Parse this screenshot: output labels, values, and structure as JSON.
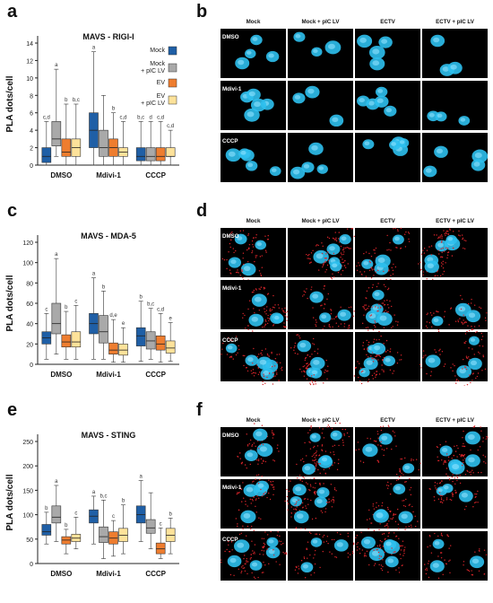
{
  "panel_labels": [
    "a",
    "b",
    "c",
    "d",
    "e",
    "f"
  ],
  "legend": [
    {
      "label": "Mock",
      "color": "#1f5fa6"
    },
    {
      "label": "Mock\n+ pIC LV",
      "color": "#a9a9a9"
    },
    {
      "label": "EV",
      "color": "#ee7d2f"
    },
    {
      "label": "EV\n+ pIC LV",
      "color": "#fde29a"
    }
  ],
  "chart_data": [
    {
      "type": "box",
      "title": "MAVS - RIGI-I",
      "ylabel": "PLA dots/cell",
      "categories": [
        "DMSO",
        "Mdivi-1",
        "CCCP"
      ],
      "yticks": [
        0,
        2,
        4,
        6,
        8,
        10,
        12,
        14
      ],
      "ylim": [
        0,
        14
      ],
      "series": [
        {
          "name": "Mock",
          "boxes": [
            {
              "min": 0,
              "q1": 0.3,
              "med": 1,
              "q3": 2,
              "max": 5
            },
            {
              "min": 0,
              "q1": 2,
              "med": 4,
              "q3": 6,
              "max": 13
            },
            {
              "min": 0,
              "q1": 0.5,
              "med": 1,
              "q3": 2,
              "max": 5
            }
          ]
        },
        {
          "name": "Mock + pIC LV",
          "boxes": [
            {
              "min": 1,
              "q1": 2.2,
              "med": 3,
              "q3": 5,
              "max": 11
            },
            {
              "min": 0,
              "q1": 1,
              "med": 2,
              "q3": 4,
              "max": 8
            },
            {
              "min": 0,
              "q1": 0.5,
              "med": 1,
              "q3": 2,
              "max": 5
            }
          ]
        },
        {
          "name": "EV",
          "boxes": [
            {
              "min": 0,
              "q1": 1,
              "med": 1.5,
              "q3": 3,
              "max": 7
            },
            {
              "min": 0,
              "q1": 1,
              "med": 2,
              "q3": 3,
              "max": 6
            },
            {
              "min": 0,
              "q1": 0.5,
              "med": 1,
              "q3": 2,
              "max": 5
            }
          ]
        },
        {
          "name": "EV + pIC LV",
          "boxes": [
            {
              "min": 0,
              "q1": 1,
              "med": 2,
              "q3": 3,
              "max": 7
            },
            {
              "min": 0,
              "q1": 1,
              "med": 1.5,
              "q3": 2,
              "max": 5
            },
            {
              "min": 0,
              "q1": 1,
              "med": 1,
              "q3": 2,
              "max": 4
            }
          ]
        }
      ],
      "annotations": [
        [
          "c,d",
          "a",
          "b",
          "b,c"
        ],
        [
          "a",
          "",
          "b",
          "c,d"
        ],
        [
          "b,c",
          "d",
          "c,d",
          "c,d"
        ]
      ]
    },
    {
      "type": "box",
      "title": "MAVS - MDA-5",
      "ylabel": "PLA dots/cell",
      "categories": [
        "DMSO",
        "Mdivi-1",
        "CCCP"
      ],
      "yticks": [
        0,
        20,
        40,
        60,
        80,
        100,
        120
      ],
      "ylim": [
        0,
        120
      ],
      "series": [
        {
          "name": "Mock",
          "boxes": [
            {
              "min": 5,
              "q1": 20,
              "med": 26,
              "q3": 32,
              "max": 50
            },
            {
              "min": 5,
              "q1": 30,
              "med": 40,
              "q3": 50,
              "max": 85
            },
            {
              "min": 3,
              "q1": 18,
              "med": 28,
              "q3": 36,
              "max": 62
            }
          ]
        },
        {
          "name": "Mock + pIC LV",
          "boxes": [
            {
              "min": 10,
              "q1": 30,
              "med": 40,
              "q3": 60,
              "max": 104
            },
            {
              "min": 5,
              "q1": 21,
              "med": 32,
              "q3": 48,
              "max": 72
            },
            {
              "min": 5,
              "q1": 15,
              "med": 23,
              "q3": 32,
              "max": 55
            }
          ]
        },
        {
          "name": "EV",
          "boxes": [
            {
              "min": 5,
              "q1": 17,
              "med": 22,
              "q3": 29,
              "max": 52
            },
            {
              "min": 2,
              "q1": 10,
              "med": 14,
              "q3": 21,
              "max": 44
            },
            {
              "min": 2,
              "q1": 14,
              "med": 20,
              "q3": 28,
              "max": 50
            }
          ]
        },
        {
          "name": "EV + pIC LV",
          "boxes": [
            {
              "min": 5,
              "q1": 17,
              "med": 22,
              "q3": 32,
              "max": 58
            },
            {
              "min": 2,
              "q1": 9,
              "med": 14,
              "q3": 20,
              "max": 36
            },
            {
              "min": 3,
              "q1": 11,
              "med": 16,
              "q3": 23,
              "max": 41
            }
          ]
        }
      ],
      "annotations": [
        [
          "c",
          "a",
          "b",
          "c"
        ],
        [
          "a",
          "b",
          "d,e",
          "e"
        ],
        [
          "b",
          "b,c",
          "c,d",
          "e"
        ]
      ]
    },
    {
      "type": "box",
      "title": "MAVS - STING",
      "ylabel": "PLA dots/cell",
      "categories": [
        "DMSO",
        "Mdivi-1",
        "CCCP"
      ],
      "yticks": [
        0,
        50,
        100,
        150,
        200,
        250
      ],
      "ylim": [
        0,
        250
      ],
      "series": [
        {
          "name": "Mock",
          "boxes": [
            {
              "min": 40,
              "q1": 58,
              "med": 65,
              "q3": 80,
              "max": 105
            },
            {
              "min": 40,
              "q1": 83,
              "med": 97,
              "q3": 110,
              "max": 138
            },
            {
              "min": 45,
              "q1": 83,
              "med": 100,
              "q3": 118,
              "max": 170
            }
          ]
        },
        {
          "name": "Mock + pIC LV",
          "boxes": [
            {
              "min": 45,
              "q1": 83,
              "med": 95,
              "q3": 118,
              "max": 160
            },
            {
              "min": 10,
              "q1": 43,
              "med": 55,
              "q3": 75,
              "max": 130
            },
            {
              "min": 30,
              "q1": 62,
              "med": 73,
              "q3": 90,
              "max": 145
            }
          ]
        },
        {
          "name": "EV",
          "boxes": [
            {
              "min": 20,
              "q1": 40,
              "med": 48,
              "q3": 55,
              "max": 70
            },
            {
              "min": 15,
              "q1": 40,
              "med": 52,
              "q3": 65,
              "max": 88
            },
            {
              "min": 10,
              "q1": 20,
              "med": 30,
              "q3": 42,
              "max": 73
            }
          ]
        },
        {
          "name": "EV + pIC LV",
          "boxes": [
            {
              "min": 30,
              "q1": 45,
              "med": 52,
              "q3": 60,
              "max": 95
            },
            {
              "min": 20,
              "q1": 45,
              "med": 58,
              "q3": 72,
              "max": 120
            },
            {
              "min": 20,
              "q1": 45,
              "med": 58,
              "q3": 72,
              "max": 93
            }
          ]
        }
      ],
      "annotations": [
        [
          "b",
          "a",
          "b",
          "c"
        ],
        [
          "a",
          "b,c",
          "c",
          "b"
        ],
        [
          "a",
          "",
          "c",
          "b"
        ]
      ]
    }
  ],
  "micro_panels": [
    {
      "cols": [
        "Mock",
        "Mock + pIC LV",
        "ECTV",
        "ECTV + pIC LV"
      ],
      "rows": [
        "DMSO",
        "Mdivi-1",
        "CCCP"
      ],
      "red": false
    },
    {
      "cols": [
        "Mock",
        "Mock + pIC LV",
        "ECTV",
        "ECTV + pIC LV"
      ],
      "rows": [
        "DMSO",
        "Mdivi-1",
        "CCCP"
      ],
      "red": true
    },
    {
      "cols": [
        "Mock",
        "Mock + pIC LV",
        "ECTV",
        "ECTV + pIC LV"
      ],
      "rows": [
        "DMSO",
        "Mdivi-1",
        "CCCP"
      ],
      "red": true
    }
  ],
  "colors": {
    "mock": "#1f5fa6",
    "mock_pic": "#a9a9a9",
    "ev": "#ee7d2f",
    "ev_pic": "#fde29a",
    "cell": "#2ec0ee",
    "dots": "#d8252a"
  }
}
